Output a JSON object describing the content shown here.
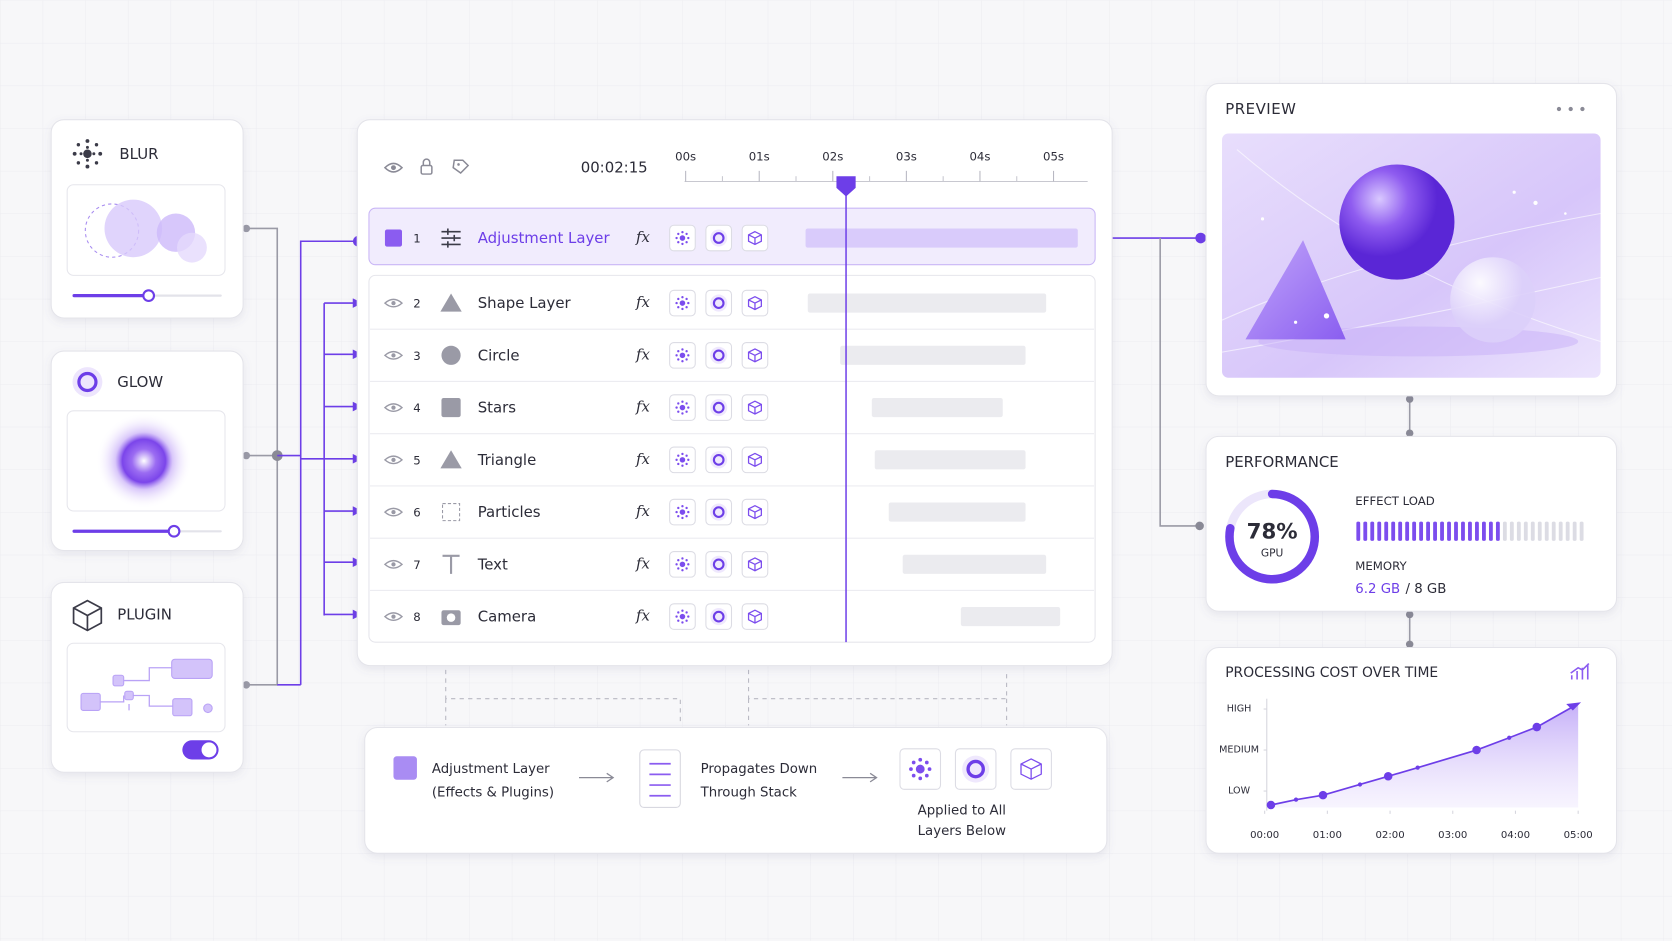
{
  "blur_panel": {
    "title": "BLUR",
    "slider": 0.51
  },
  "glow_panel": {
    "title": "GLOW",
    "slider": 0.68
  },
  "plugin_panel": {
    "title": "PLUGIN",
    "enabled": true
  },
  "timeline": {
    "timecode": "00:02:15",
    "ticks": [
      "00s",
      "01s",
      "02s",
      "03s",
      "04s",
      "05s"
    ],
    "playhead": 2.18,
    "fx_label": "fx",
    "layers": [
      {
        "index": 1,
        "name": "Adjustment Layer",
        "start": 1.63,
        "end": 5.33
      },
      {
        "index": 2,
        "name": "Shape Layer",
        "start": 1.66,
        "end": 4.9
      },
      {
        "index": 3,
        "name": "Circle",
        "start": 2.1,
        "end": 4.62
      },
      {
        "index": 4,
        "name": "Stars",
        "start": 2.53,
        "end": 4.31
      },
      {
        "index": 5,
        "name": "Triangle",
        "start": 2.57,
        "end": 4.62
      },
      {
        "index": 6,
        "name": "Particles",
        "start": 2.76,
        "end": 4.62
      },
      {
        "index": 7,
        "name": "Text",
        "start": 2.95,
        "end": 4.9
      },
      {
        "index": 8,
        "name": "Camera",
        "start": 3.74,
        "end": 5.09
      }
    ]
  },
  "legend": {
    "step1": [
      "Adjustment Layer",
      "(Effects & Plugins)"
    ],
    "step2": [
      "Propagates Down",
      "Through Stack"
    ],
    "step3": [
      "Applied to All",
      "Layers Below"
    ]
  },
  "preview": {
    "title": "PREVIEW"
  },
  "performance": {
    "title": "PERFORMANCE",
    "gpu": {
      "value": 78,
      "value_label": "78%",
      "label": "GPU"
    },
    "effect_load": {
      "label": "EFFECT LOAD",
      "segments": 33,
      "filled": 21
    },
    "memory": {
      "label": "MEMORY",
      "used": "6.2 GB",
      "total": "/ 8 GB"
    }
  },
  "chart_data": {
    "type": "line",
    "title": "PROCESSING COST OVER TIME",
    "color": "#6d3ee8",
    "x": [
      0.1,
      0.5,
      0.93,
      1.52,
      1.97,
      2.44,
      3.38,
      3.9,
      4.34,
      5.0
    ],
    "values": [
      0.66,
      0.79,
      0.9,
      1.16,
      1.36,
      1.57,
      2.0,
      2.3,
      2.56,
      3.13
    ],
    "xlim": [
      0,
      5
    ],
    "xticks": [
      {
        "value": 0,
        "label": "00:00"
      },
      {
        "value": 1,
        "label": "01:00"
      },
      {
        "value": 2,
        "label": "02:00"
      },
      {
        "value": 3,
        "label": "03:00"
      },
      {
        "value": 4,
        "label": "04:00"
      },
      {
        "value": 5,
        "label": "05:00"
      }
    ],
    "ylim": [
      0.6,
      3.2
    ],
    "yticks": [
      {
        "value": 1,
        "label": "LOW"
      },
      {
        "value": 2,
        "label": "MEDIUM"
      },
      {
        "value": 3,
        "label": "HIGH"
      }
    ]
  }
}
